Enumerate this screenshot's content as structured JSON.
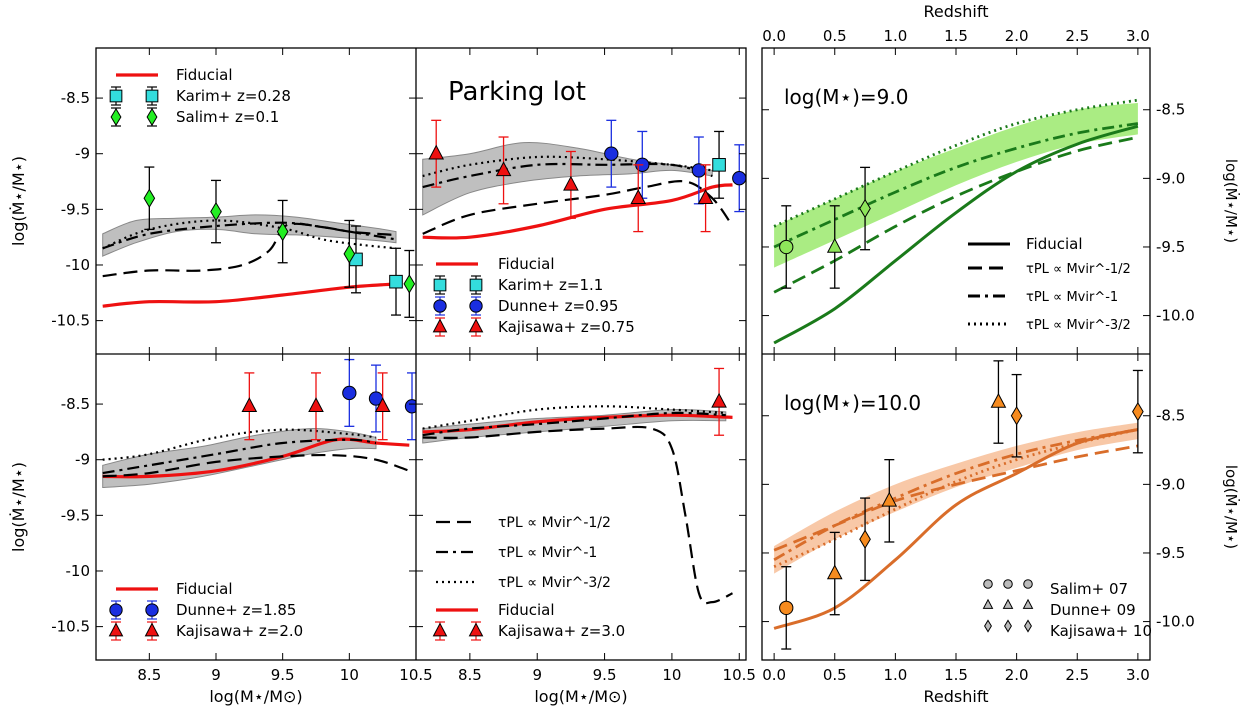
{
  "figure": {
    "left_ylabel": "log(Ṁ⋆/M⋆)",
    "left_xlabel": "log(M⋆/M⊙)",
    "right_ylabel": "log(Ṁ⋆/M⋆)",
    "right_xlabel_top": "Redshift",
    "right_xlabel_bottom": "Redshift",
    "left_xticks": [
      "8.5",
      "9",
      "9.5",
      "10",
      "10.5"
    ],
    "left_yticks": [
      "-8.5",
      "-9",
      "-9.5",
      "-10",
      "-10.5"
    ],
    "right_xticks": [
      "0.0",
      "0.5",
      "1.0",
      "1.5",
      "2.0",
      "2.5",
      "3.0"
    ],
    "right_yticks": [
      "-8.5",
      "-9.0",
      "-9.5",
      "-10.0"
    ],
    "panel_titles": [
      "Parking lot",
      "log(M⋆)=9.0",
      "log(M⋆)=10.0"
    ]
  },
  "legends": {
    "tl": [
      "Fiducial",
      "Karim+ z=0.28",
      "Salim+ z=0.1"
    ],
    "tm": [
      "Fiducial",
      "Karim+ z=1.1",
      "Dunne+ z=0.95",
      "Kajisawa+ z=0.75"
    ],
    "bl": [
      "Fiducial",
      "Dunne+ z=1.85",
      "Kajisawa+ z=2.0"
    ],
    "bm_lines": [
      "τPL ∝ Mvir^-1/2",
      "τPL ∝ Mvir^-1",
      "τPL ∝ Mvir^-3/2"
    ],
    "bm": [
      "Fiducial",
      "Kajisawa+ z=3.0"
    ],
    "rt": [
      "Fiducial",
      "τPL ∝ Mvir^-1/2",
      "τPL ∝ Mvir^-1",
      "τPL ∝ Mvir^-3/2"
    ],
    "rb": [
      "Salim+ 07",
      "Dunne+ 09",
      "Kajisawa+ 10"
    ]
  },
  "colors": {
    "fiducial": "#ee1111",
    "karim": "#33dddd",
    "salim": "#22ee22",
    "dunne": "#1a2ee0",
    "kajisawa": "#ee1111",
    "band": "#b8b8b8",
    "green_line": "#1a7a1a",
    "green_band": "#8ee65a",
    "orange_line": "#d96d2a",
    "orange_band": "#f5b58a",
    "orange_marker": "#f68b1f"
  },
  "chart_data": [
    {
      "type": "line",
      "panel": "top-left",
      "xlim": [
        8.1,
        10.5
      ],
      "ylim": [
        -10.8,
        -8.05
      ],
      "band": {
        "x": [
          8.15,
          8.4,
          8.7,
          9.0,
          9.3,
          9.6,
          9.9,
          10.2,
          10.35
        ],
        "upper": [
          -9.72,
          -9.6,
          -9.58,
          -9.57,
          -9.55,
          -9.57,
          -9.62,
          -9.67,
          -9.7
        ],
        "lower": [
          -9.92,
          -9.8,
          -9.7,
          -9.68,
          -9.72,
          -9.73,
          -9.75,
          -9.78,
          -9.8
        ]
      },
      "series": [
        {
          "name": "Fiducial",
          "style": "solid-red",
          "x": [
            8.15,
            8.5,
            9.0,
            9.5,
            10.0,
            10.35
          ],
          "y": [
            -10.37,
            -10.33,
            -10.33,
            -10.27,
            -10.2,
            -10.17
          ]
        },
        {
          "style": "dashed",
          "x": [
            8.15,
            8.5,
            8.9,
            9.2,
            9.4,
            9.5,
            9.6,
            9.8,
            10.0,
            10.2,
            10.35
          ],
          "y": [
            -10.1,
            -10.05,
            -10.05,
            -10.0,
            -9.87,
            -9.67,
            -9.63,
            -9.66,
            -9.7,
            -9.72,
            -9.73
          ]
        },
        {
          "style": "dashdot",
          "x": [
            8.15,
            8.5,
            9.0,
            9.5,
            9.8,
            10.0,
            10.35
          ],
          "y": [
            -9.85,
            -9.72,
            -9.65,
            -9.62,
            -9.66,
            -9.7,
            -9.77
          ]
        },
        {
          "style": "dotted",
          "x": [
            8.15,
            8.5,
            9.0,
            9.5,
            9.8,
            10.1,
            10.35
          ],
          "y": [
            -9.85,
            -9.68,
            -9.6,
            -9.67,
            -9.77,
            -9.82,
            -9.85
          ]
        }
      ],
      "points": [
        {
          "name": "Karim+ z=0.28",
          "marker": "square",
          "x": [
            10.05,
            10.35
          ],
          "y": [
            -9.95,
            -10.15
          ],
          "err": [
            0.3,
            0.3
          ]
        },
        {
          "name": "Salim+ z=0.1",
          "marker": "diamond",
          "x": [
            8.5,
            9.0,
            9.5,
            10.0,
            10.45
          ],
          "y": [
            -9.4,
            -9.52,
            -9.7,
            -9.9,
            -10.17
          ],
          "err": [
            0.28,
            0.28,
            0.28,
            0.3,
            0.3
          ]
        }
      ]
    },
    {
      "type": "line",
      "panel": "top-middle",
      "xlim": [
        8.1,
        10.55
      ],
      "ylim": [
        -10.8,
        -8.05
      ],
      "band": {
        "x": [
          8.15,
          8.5,
          8.9,
          9.3,
          9.7,
          10.0,
          10.3
        ],
        "upper": [
          -9.05,
          -9.0,
          -8.9,
          -8.95,
          -9.05,
          -9.1,
          -9.15
        ],
        "lower": [
          -9.55,
          -9.35,
          -9.25,
          -9.2,
          -9.18,
          -9.15,
          -9.2
        ]
      },
      "series": [
        {
          "name": "Fiducial",
          "style": "solid-red",
          "x": [
            8.15,
            8.5,
            9.0,
            9.5,
            10.0,
            10.3,
            10.45
          ],
          "y": [
            -9.75,
            -9.75,
            -9.65,
            -9.5,
            -9.42,
            -9.3,
            -9.28
          ]
        },
        {
          "style": "dashed",
          "x": [
            8.15,
            8.5,
            9.0,
            9.5,
            9.8,
            10.1,
            10.3,
            10.45
          ],
          "y": [
            -9.72,
            -9.55,
            -9.45,
            -9.37,
            -9.3,
            -9.25,
            -9.4,
            -9.65
          ]
        },
        {
          "style": "dashdot",
          "x": [
            8.15,
            8.5,
            9.0,
            9.5,
            10.0,
            10.3
          ],
          "y": [
            -9.3,
            -9.2,
            -9.1,
            -9.1,
            -9.1,
            -9.2
          ]
        },
        {
          "style": "dotted",
          "x": [
            8.15,
            8.5,
            9.0,
            9.5,
            10.0,
            10.3
          ],
          "y": [
            -9.2,
            -9.1,
            -9.03,
            -9.05,
            -9.1,
            -9.15
          ]
        }
      ],
      "points": [
        {
          "name": "Karim+ z=1.1",
          "marker": "square",
          "x": [
            10.35
          ],
          "y": [
            -9.1
          ],
          "err": [
            0.3
          ]
        },
        {
          "name": "Dunne+ z=0.95",
          "marker": "circle",
          "x": [
            9.55,
            9.78,
            10.2,
            10.5
          ],
          "y": [
            -9.0,
            -9.1,
            -9.15,
            -9.22
          ],
          "err": [
            0.3,
            0.3,
            0.3,
            0.3
          ]
        },
        {
          "name": "Kajisawa+ z=0.75",
          "marker": "triangle",
          "x": [
            8.25,
            8.75,
            9.25,
            9.75,
            10.25
          ],
          "y": [
            -9.0,
            -9.15,
            -9.28,
            -9.4,
            -9.4
          ],
          "err": [
            0.3,
            0.3,
            0.3,
            0.3,
            0.3
          ]
        }
      ]
    },
    {
      "type": "line",
      "panel": "bottom-left",
      "xlim": [
        8.1,
        10.5
      ],
      "ylim": [
        -10.8,
        -8.05
      ],
      "band": {
        "x": [
          8.15,
          8.5,
          8.9,
          9.3,
          9.7,
          10.0,
          10.2
        ],
        "upper": [
          -9.05,
          -8.95,
          -8.88,
          -8.78,
          -8.72,
          -8.75,
          -8.8
        ],
        "lower": [
          -9.25,
          -9.22,
          -9.15,
          -9.05,
          -8.95,
          -8.9,
          -8.9
        ]
      },
      "series": [
        {
          "name": "Fiducial",
          "style": "solid-red",
          "x": [
            8.15,
            8.5,
            9.0,
            9.5,
            9.9,
            10.2,
            10.45
          ],
          "y": [
            -9.15,
            -9.15,
            -9.1,
            -8.97,
            -8.82,
            -8.85,
            -8.87
          ]
        },
        {
          "style": "dashed",
          "x": [
            8.15,
            8.5,
            9.0,
            9.5,
            9.9,
            10.2,
            10.45
          ],
          "y": [
            -9.15,
            -9.12,
            -9.02,
            -8.97,
            -8.96,
            -9.0,
            -9.1
          ]
        },
        {
          "style": "dashdot",
          "x": [
            8.15,
            8.5,
            9.0,
            9.5,
            10.0,
            10.2
          ],
          "y": [
            -9.12,
            -9.05,
            -8.95,
            -8.85,
            -8.82,
            -8.85
          ]
        },
        {
          "style": "dotted",
          "x": [
            8.15,
            8.5,
            9.0,
            9.5,
            10.0,
            10.2
          ],
          "y": [
            -9.0,
            -8.95,
            -8.8,
            -8.73,
            -8.77,
            -8.8
          ]
        }
      ],
      "points": [
        {
          "name": "Dunne+ z=1.85",
          "marker": "circle",
          "x": [
            10.0,
            10.2,
            10.47
          ],
          "y": [
            -8.4,
            -8.45,
            -8.52
          ],
          "err": [
            0.3,
            0.3,
            0.3
          ]
        },
        {
          "name": "Kajisawa+ z=2.0",
          "marker": "triangle",
          "x": [
            9.25,
            9.75,
            10.25
          ],
          "y": [
            -8.52,
            -8.52,
            -8.52
          ],
          "err": [
            0.3,
            0.3,
            0.3
          ]
        }
      ]
    },
    {
      "type": "line",
      "panel": "bottom-middle",
      "xlim": [
        8.1,
        10.55
      ],
      "ylim": [
        -10.8,
        -8.05
      ],
      "band": {
        "x": [
          8.15,
          8.5,
          9.0,
          9.5,
          10.0,
          10.4
        ],
        "upper": [
          -8.72,
          -8.68,
          -8.63,
          -8.6,
          -8.55,
          -8.57
        ],
        "lower": [
          -8.85,
          -8.8,
          -8.75,
          -8.7,
          -8.65,
          -8.65
        ]
      },
      "series": [
        {
          "name": "Fiducial",
          "style": "solid-red",
          "x": [
            8.15,
            8.5,
            9.0,
            9.5,
            10.0,
            10.45
          ],
          "y": [
            -8.75,
            -8.73,
            -8.66,
            -8.62,
            -8.6,
            -8.62
          ]
        },
        {
          "style": "dashed",
          "x": [
            8.15,
            8.5,
            9.0,
            9.5,
            9.85,
            10.0,
            10.1,
            10.2,
            10.3,
            10.45
          ],
          "y": [
            -8.8,
            -8.8,
            -8.75,
            -8.72,
            -8.72,
            -8.9,
            -9.5,
            -10.2,
            -10.28,
            -10.2
          ]
        },
        {
          "style": "dashdot",
          "x": [
            8.15,
            8.5,
            9.0,
            9.5,
            10.0,
            10.4
          ],
          "y": [
            -8.78,
            -8.72,
            -8.68,
            -8.63,
            -8.58,
            -8.6
          ]
        },
        {
          "style": "dotted",
          "x": [
            8.15,
            8.5,
            9.0,
            9.5,
            10.0,
            10.4
          ],
          "y": [
            -8.72,
            -8.65,
            -8.55,
            -8.52,
            -8.55,
            -8.58
          ]
        }
      ],
      "points": [
        {
          "name": "Kajisawa+ z=3.0",
          "marker": "triangle",
          "x": [
            10.35
          ],
          "y": [
            -8.48
          ],
          "err": [
            0.3
          ]
        }
      ]
    },
    {
      "type": "line",
      "panel": "right-top",
      "title": "log(M⋆)=9.0",
      "xlim": [
        -0.1,
        3.1
      ],
      "ylim": [
        -10.28,
        -8.05
      ],
      "band": {
        "x": [
          0.0,
          0.5,
          1.0,
          1.5,
          2.0,
          2.5,
          3.0
        ],
        "upper": [
          -9.35,
          -9.15,
          -8.95,
          -8.78,
          -8.62,
          -8.5,
          -8.45
        ],
        "lower": [
          -9.65,
          -9.45,
          -9.25,
          -9.05,
          -8.88,
          -8.75,
          -8.68
        ]
      },
      "series": [
        {
          "name": "Fiducial",
          "style": "solid",
          "x": [
            0.0,
            0.5,
            1.0,
            1.5,
            2.0,
            2.5,
            3.0
          ],
          "y": [
            -10.2,
            -9.95,
            -9.6,
            -9.25,
            -8.95,
            -8.75,
            -8.62
          ]
        },
        {
          "name": "τPL ∝ Mvir^-1/2",
          "style": "dashed",
          "x": [
            0.0,
            0.5,
            1.0,
            1.5,
            2.0,
            2.5,
            3.0
          ],
          "y": [
            -9.83,
            -9.6,
            -9.35,
            -9.13,
            -8.95,
            -8.8,
            -8.7
          ]
        },
        {
          "name": "τPL ∝ Mvir^-1",
          "style": "dashdot",
          "x": [
            0.0,
            0.5,
            1.0,
            1.5,
            2.0,
            2.5,
            3.0
          ],
          "y": [
            -9.5,
            -9.3,
            -9.1,
            -8.92,
            -8.78,
            -8.67,
            -8.6
          ]
        },
        {
          "name": "τPL ∝ Mvir^-3/2",
          "style": "dotted",
          "x": [
            0.0,
            0.5,
            1.0,
            1.5,
            2.0,
            2.5,
            3.0
          ],
          "y": [
            -9.35,
            -9.15,
            -8.95,
            -8.76,
            -8.6,
            -8.5,
            -8.43
          ]
        }
      ],
      "points": [
        {
          "name": "Salim+ 07",
          "marker": "circle",
          "x": [
            0.1
          ],
          "y": [
            -9.5
          ],
          "err": [
            0.3
          ]
        },
        {
          "name": "Dunne+ 09",
          "marker": "triangle",
          "x": [
            0.5
          ],
          "y": [
            -9.5
          ],
          "err": [
            0.3
          ]
        },
        {
          "name": "Kajisawa+ 10",
          "marker": "diamond",
          "x": [
            0.75
          ],
          "y": [
            -9.22
          ],
          "err": [
            0.3
          ]
        }
      ]
    },
    {
      "type": "line",
      "panel": "right-bottom",
      "title": "log(M⋆)=10.0",
      "xlim": [
        -0.1,
        3.1
      ],
      "ylim": [
        -10.28,
        -8.05
      ],
      "band": {
        "x": [
          0.0,
          0.5,
          1.0,
          1.5,
          2.0,
          2.5,
          3.0
        ],
        "upper": [
          -9.45,
          -9.2,
          -9.0,
          -8.85,
          -8.72,
          -8.62,
          -8.55
        ],
        "lower": [
          -9.65,
          -9.4,
          -9.2,
          -9.02,
          -8.88,
          -8.75,
          -8.67
        ]
      },
      "series": [
        {
          "name": "Fiducial",
          "style": "solid",
          "x": [
            0.0,
            0.5,
            1.0,
            1.5,
            2.0,
            2.5,
            3.0
          ],
          "y": [
            -10.05,
            -9.9,
            -9.55,
            -9.15,
            -8.92,
            -8.7,
            -8.6
          ]
        },
        {
          "name": "τPL ∝ Mvir^-1/2",
          "style": "dashed",
          "x": [
            0.0,
            0.5,
            1.0,
            1.5,
            2.0,
            2.5,
            3.0
          ],
          "y": [
            -9.48,
            -9.3,
            -9.12,
            -9.0,
            -8.9,
            -8.8,
            -8.72
          ]
        },
        {
          "name": "τPL ∝ Mvir^-1",
          "style": "dashdot",
          "x": [
            0.0,
            0.5,
            1.0,
            1.5,
            2.0,
            2.5,
            3.0
          ],
          "y": [
            -9.55,
            -9.3,
            -9.1,
            -8.92,
            -8.78,
            -8.68,
            -8.6
          ]
        },
        {
          "name": "τPL ∝ Mvir^-3/2",
          "style": "dotted",
          "x": [
            0.0,
            0.5,
            1.0,
            1.5,
            2.0,
            2.5,
            3.0
          ],
          "y": [
            -9.6,
            -9.4,
            -9.18,
            -8.98,
            -8.82,
            -8.7,
            -8.6
          ]
        }
      ],
      "points": [
        {
          "name": "Salim+ 07",
          "marker": "circle",
          "x": [
            0.1
          ],
          "y": [
            -9.9
          ],
          "err": [
            0.3
          ]
        },
        {
          "name": "Dunne+ 09",
          "marker": "triangle",
          "x": [
            0.5,
            0.95,
            1.85
          ],
          "y": [
            -9.65,
            -9.12,
            -8.4
          ],
          "err": [
            0.3,
            0.3,
            0.3
          ]
        },
        {
          "name": "Kajisawa+ 10",
          "marker": "diamond",
          "x": [
            0.75,
            2.0,
            3.0
          ],
          "y": [
            -9.4,
            -8.5,
            -8.47
          ],
          "err": [
            0.3,
            0.3,
            0.3
          ]
        }
      ]
    }
  ]
}
